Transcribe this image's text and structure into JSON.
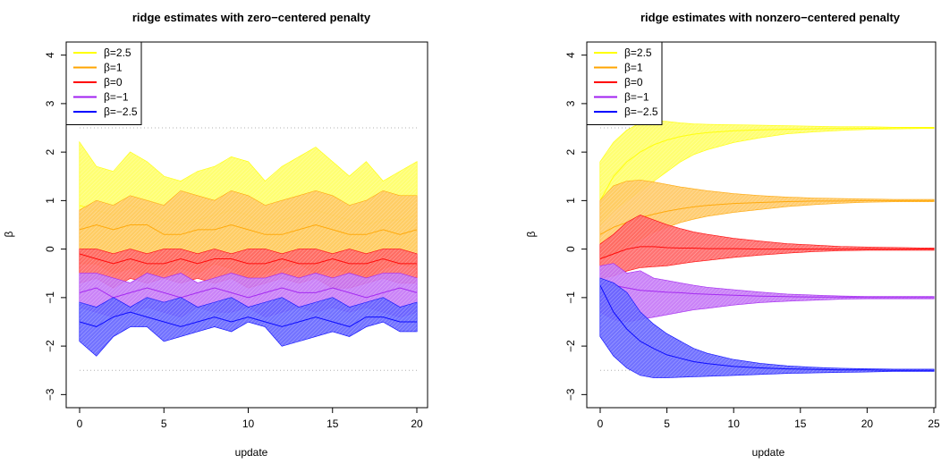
{
  "chart_data": [
    {
      "type": "area",
      "title": "ridge estimates with zero−centered penalty",
      "xlabel": "update",
      "ylabel": "β",
      "xlim": [
        0,
        20
      ],
      "ylim": [
        -3,
        4
      ],
      "xticks": [
        0,
        5,
        10,
        15,
        20
      ],
      "yticks": [
        -3,
        -2,
        -1,
        0,
        1,
        2,
        3,
        4
      ],
      "x_tick_labels": [
        "0",
        "5",
        "10",
        "15",
        "20"
      ],
      "y_tick_labels": [
        "−3",
        "−2",
        "−1",
        "0",
        "1",
        "2",
        "3",
        "4"
      ],
      "reference_lines": [
        2.5,
        -2.5
      ],
      "legend_position": "top-left",
      "x": [
        0,
        1,
        2,
        3,
        4,
        5,
        6,
        7,
        8,
        9,
        10,
        11,
        12,
        13,
        14,
        15,
        16,
        17,
        18,
        19,
        20
      ],
      "series": [
        {
          "name": "β=2.5",
          "color": "#ffff00",
          "mean": [
            0.9,
            0.8,
            0.7,
            0.9,
            0.8,
            0.6,
            0.5,
            0.6,
            0.7,
            0.8,
            0.7,
            0.5,
            0.6,
            0.7,
            0.8,
            0.7,
            0.6,
            0.5,
            0.6,
            0.6,
            0.7
          ],
          "upper": [
            2.2,
            1.7,
            1.6,
            2.0,
            1.8,
            1.5,
            1.4,
            1.6,
            1.7,
            1.9,
            1.8,
            1.4,
            1.7,
            1.9,
            2.1,
            1.8,
            1.5,
            1.8,
            1.4,
            1.6,
            1.8
          ],
          "lower": [
            0.0,
            -0.1,
            -0.2,
            0.0,
            -0.1,
            -0.2,
            -0.3,
            -0.2,
            -0.1,
            0.0,
            -0.1,
            -0.3,
            -0.2,
            -0.1,
            0.0,
            -0.1,
            -0.2,
            -0.3,
            -0.2,
            -0.1,
            0.0
          ]
        },
        {
          "name": "β=1",
          "color": "#ffa500",
          "mean": [
            0.4,
            0.5,
            0.4,
            0.5,
            0.5,
            0.3,
            0.3,
            0.4,
            0.4,
            0.5,
            0.4,
            0.3,
            0.3,
            0.4,
            0.5,
            0.4,
            0.3,
            0.3,
            0.4,
            0.3,
            0.4
          ],
          "upper": [
            0.8,
            1.0,
            0.9,
            1.1,
            1.0,
            0.9,
            1.2,
            1.1,
            1.0,
            1.2,
            1.1,
            0.9,
            1.0,
            1.1,
            1.2,
            1.1,
            0.9,
            1.0,
            1.2,
            1.1,
            1.1
          ],
          "lower": [
            -0.3,
            -0.3,
            -0.5,
            -0.4,
            -0.6,
            -0.5,
            -0.4,
            -0.5,
            -0.3,
            -0.4,
            -0.6,
            -0.5,
            -0.4,
            -0.3,
            -0.5,
            -0.4,
            -0.5,
            -0.6,
            -0.4,
            -0.3,
            -0.4
          ]
        },
        {
          "name": "β=0",
          "color": "#ff0000",
          "mean": [
            -0.1,
            -0.2,
            -0.3,
            -0.2,
            -0.3,
            -0.3,
            -0.2,
            -0.3,
            -0.2,
            -0.2,
            -0.3,
            -0.3,
            -0.2,
            -0.3,
            -0.3,
            -0.2,
            -0.3,
            -0.3,
            -0.2,
            -0.3,
            -0.3
          ],
          "upper": [
            0.0,
            0.0,
            -0.1,
            0.0,
            -0.1,
            0.0,
            0.0,
            -0.1,
            0.0,
            -0.1,
            0.0,
            0.0,
            -0.1,
            0.0,
            0.0,
            -0.1,
            0.0,
            -0.1,
            0.0,
            0.0,
            -0.1
          ],
          "lower": [
            -0.7,
            -0.6,
            -0.8,
            -0.6,
            -0.7,
            -0.6,
            -0.7,
            -0.6,
            -0.7,
            -0.6,
            -0.8,
            -0.7,
            -0.6,
            -0.7,
            -0.6,
            -0.8,
            -0.8,
            -0.7,
            -0.6,
            -0.7,
            -0.7
          ]
        },
        {
          "name": "β=−1",
          "color": "#a020f0",
          "mean": [
            -0.9,
            -0.8,
            -1.0,
            -0.9,
            -0.8,
            -0.9,
            -1.0,
            -0.9,
            -0.8,
            -0.9,
            -1.0,
            -0.9,
            -0.8,
            -0.9,
            -0.9,
            -0.8,
            -0.9,
            -1.0,
            -0.9,
            -0.8,
            -0.9
          ],
          "upper": [
            -0.5,
            -0.5,
            -0.6,
            -0.7,
            -0.5,
            -0.6,
            -0.5,
            -0.7,
            -0.6,
            -0.5,
            -0.6,
            -0.6,
            -0.5,
            -0.6,
            -0.5,
            -0.6,
            -0.5,
            -0.6,
            -0.5,
            -0.5,
            -0.6
          ],
          "lower": [
            -1.2,
            -1.3,
            -1.4,
            -1.3,
            -1.2,
            -1.3,
            -1.4,
            -1.2,
            -1.3,
            -1.3,
            -1.2,
            -1.4,
            -1.3,
            -1.2,
            -1.3,
            -1.2,
            -1.3,
            -1.2,
            -1.3,
            -1.4,
            -1.3
          ]
        },
        {
          "name": "β=−2.5",
          "color": "#0000ff",
          "mean": [
            -1.5,
            -1.6,
            -1.4,
            -1.3,
            -1.4,
            -1.5,
            -1.6,
            -1.5,
            -1.4,
            -1.5,
            -1.4,
            -1.5,
            -1.6,
            -1.5,
            -1.4,
            -1.5,
            -1.6,
            -1.4,
            -1.4,
            -1.5,
            -1.5
          ],
          "upper": [
            -1.1,
            -1.2,
            -1.0,
            -1.2,
            -1.0,
            -1.1,
            -1.0,
            -1.2,
            -1.1,
            -1.0,
            -1.2,
            -1.1,
            -1.0,
            -1.2,
            -1.1,
            -1.0,
            -1.2,
            -1.1,
            -1.0,
            -1.2,
            -1.1
          ],
          "lower": [
            -1.9,
            -2.2,
            -1.8,
            -1.6,
            -1.6,
            -1.9,
            -1.8,
            -1.7,
            -1.6,
            -1.7,
            -1.5,
            -1.6,
            -2.0,
            -1.9,
            -1.8,
            -1.7,
            -1.8,
            -1.6,
            -1.5,
            -1.7,
            -1.7
          ]
        }
      ]
    },
    {
      "type": "area",
      "title": "ridge estimates with nonzero−centered penalty",
      "xlabel": "update",
      "ylabel": "β",
      "xlim": [
        0,
        25
      ],
      "ylim": [
        -3,
        4
      ],
      "xticks": [
        0,
        5,
        10,
        15,
        20,
        25
      ],
      "yticks": [
        -3,
        -2,
        -1,
        0,
        1,
        2,
        3,
        4
      ],
      "x_tick_labels": [
        "0",
        "5",
        "10",
        "15",
        "20",
        "25"
      ],
      "y_tick_labels": [
        "−3",
        "−2",
        "−1",
        "0",
        "1",
        "2",
        "3",
        "4"
      ],
      "reference_lines": [
        2.5,
        -2.5
      ],
      "legend_position": "top-left",
      "x": [
        0,
        1,
        2,
        3,
        4,
        5,
        6,
        7,
        8,
        10,
        12,
        14,
        16,
        18,
        20,
        22,
        24,
        25
      ],
      "series": [
        {
          "name": "β=2.5",
          "color": "#ffff00",
          "mean": [
            1.0,
            1.5,
            1.8,
            2.0,
            2.15,
            2.25,
            2.32,
            2.37,
            2.4,
            2.44,
            2.46,
            2.47,
            2.48,
            2.49,
            2.49,
            2.5,
            2.5,
            2.5
          ],
          "upper": [
            1.8,
            2.2,
            2.45,
            2.6,
            2.65,
            2.63,
            2.6,
            2.58,
            2.57,
            2.56,
            2.55,
            2.54,
            2.53,
            2.52,
            2.52,
            2.51,
            2.51,
            2.51
          ],
          "lower": [
            0.5,
            0.8,
            1.0,
            1.2,
            1.4,
            1.6,
            1.8,
            1.95,
            2.05,
            2.2,
            2.3,
            2.38,
            2.42,
            2.45,
            2.47,
            2.48,
            2.49,
            2.49
          ]
        },
        {
          "name": "β=1",
          "color": "#ffa500",
          "mean": [
            0.3,
            0.45,
            0.55,
            0.65,
            0.72,
            0.78,
            0.83,
            0.87,
            0.9,
            0.94,
            0.96,
            0.98,
            0.99,
            0.99,
            1.0,
            1.0,
            1.0,
            1.0
          ],
          "upper": [
            1.0,
            1.3,
            1.4,
            1.42,
            1.38,
            1.33,
            1.28,
            1.24,
            1.2,
            1.14,
            1.1,
            1.07,
            1.05,
            1.04,
            1.03,
            1.02,
            1.02,
            1.02
          ],
          "lower": [
            -0.2,
            -0.1,
            0.05,
            0.2,
            0.35,
            0.45,
            0.55,
            0.62,
            0.68,
            0.76,
            0.82,
            0.88,
            0.92,
            0.95,
            0.97,
            0.98,
            0.98,
            0.98
          ]
        },
        {
          "name": "β=0",
          "color": "#ff0000",
          "mean": [
            -0.2,
            -0.1,
            0.0,
            0.05,
            0.05,
            0.03,
            0.02,
            0.02,
            0.01,
            0.01,
            0.0,
            0.0,
            0.0,
            0.0,
            0.0,
            0.0,
            0.0,
            0.0
          ],
          "upper": [
            0.1,
            0.3,
            0.55,
            0.7,
            0.6,
            0.5,
            0.42,
            0.35,
            0.3,
            0.22,
            0.16,
            0.11,
            0.08,
            0.05,
            0.04,
            0.03,
            0.02,
            0.02
          ],
          "lower": [
            -0.6,
            -0.55,
            -0.45,
            -0.38,
            -0.36,
            -0.34,
            -0.3,
            -0.26,
            -0.23,
            -0.17,
            -0.12,
            -0.08,
            -0.05,
            -0.03,
            -0.02,
            -0.02,
            -0.02,
            -0.02
          ]
        },
        {
          "name": "β=−1",
          "color": "#a020f0",
          "mean": [
            -0.7,
            -0.75,
            -0.8,
            -0.85,
            -0.87,
            -0.89,
            -0.9,
            -0.92,
            -0.93,
            -0.95,
            -0.97,
            -0.98,
            -0.99,
            -0.99,
            -1.0,
            -1.0,
            -1.0,
            -1.0
          ],
          "upper": [
            -0.35,
            -0.3,
            -0.5,
            -0.45,
            -0.6,
            -0.65,
            -0.7,
            -0.75,
            -0.79,
            -0.84,
            -0.89,
            -0.93,
            -0.95,
            -0.97,
            -0.98,
            -0.98,
            -0.98,
            -0.98
          ],
          "lower": [
            -1.3,
            -1.45,
            -1.5,
            -1.45,
            -1.4,
            -1.35,
            -1.3,
            -1.25,
            -1.22,
            -1.15,
            -1.1,
            -1.07,
            -1.05,
            -1.03,
            -1.02,
            -1.02,
            -1.02,
            -1.02
          ]
        },
        {
          "name": "β=−2.5",
          "color": "#0000ff",
          "mean": [
            -0.75,
            -1.3,
            -1.65,
            -1.9,
            -2.05,
            -2.18,
            -2.25,
            -2.32,
            -2.36,
            -2.42,
            -2.45,
            -2.47,
            -2.48,
            -2.49,
            -2.49,
            -2.5,
            -2.5,
            -2.5
          ],
          "upper": [
            -0.6,
            -0.7,
            -0.9,
            -1.3,
            -1.55,
            -1.75,
            -1.9,
            -2.05,
            -2.15,
            -2.28,
            -2.36,
            -2.41,
            -2.44,
            -2.46,
            -2.47,
            -2.48,
            -2.48,
            -2.48
          ],
          "lower": [
            -1.8,
            -2.2,
            -2.45,
            -2.6,
            -2.65,
            -2.65,
            -2.64,
            -2.63,
            -2.62,
            -2.6,
            -2.58,
            -2.56,
            -2.55,
            -2.54,
            -2.53,
            -2.52,
            -2.52,
            -2.52
          ]
        }
      ]
    }
  ]
}
